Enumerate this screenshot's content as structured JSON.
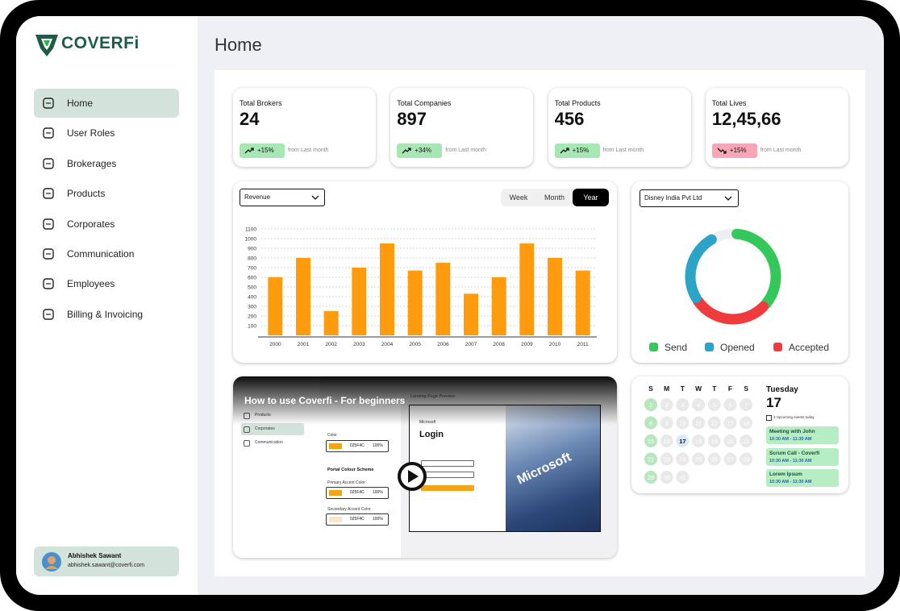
{
  "sidebar": {
    "logo": "COVERFi",
    "nav": [
      "Home",
      "User Roles",
      "Brokerages",
      "Products",
      "Corporates",
      "Communication",
      "Employees",
      "Billing & Invoicing"
    ],
    "user": {
      "name": "Abhishek Sawant",
      "email": "abhishek.sawant@coverfi.com"
    }
  },
  "page_title": "Home",
  "stats": [
    {
      "label": "Total Brokers",
      "value": "24",
      "change": "+15%",
      "note": "from Last month",
      "color": "#a6e7b4"
    },
    {
      "label": "Total Companies",
      "value": "897",
      "change": "+34%",
      "note": "from Last month",
      "color": "#a6e7b4"
    },
    {
      "label": "Total Products",
      "value": "456",
      "change": "+15%",
      "note": "from Last month",
      "color": "#a6e7b4"
    },
    {
      "label": "Total Lives",
      "value": "12,45,66",
      "change": "+15%",
      "note": "from Last month",
      "color": "#f6a6b6"
    }
  ],
  "revenue_card": {
    "dropdown": "Revenue",
    "tabs": [
      "Week",
      "Month",
      "Year"
    ]
  },
  "donut_card": {
    "dropdown": "Disney India Pvt Ltd"
  },
  "chart_data": [
    {
      "type": "bar",
      "categories": [
        "2000",
        "2001",
        "2002",
        "2003",
        "2004",
        "2005",
        "2006",
        "2007",
        "2008",
        "2009",
        "2010",
        "2011"
      ],
      "values": [
        600,
        800,
        250,
        700,
        950,
        670,
        750,
        430,
        600,
        950,
        800,
        670
      ],
      "color": "#ff9b0d",
      "ylim": [
        0,
        1100
      ],
      "yticks": [
        100,
        200,
        300,
        400,
        500,
        600,
        700,
        800,
        900,
        1000,
        1100
      ],
      "grid": true
    },
    {
      "type": "donut",
      "categories": [
        "Send",
        "Opened",
        "Accepted"
      ],
      "values": [
        35,
        25,
        28
      ],
      "colors": [
        "#34c759",
        "#2ba4c8",
        "#ef3b3b"
      ]
    }
  ],
  "video": {
    "title": "How to use Coverfi - For beginners",
    "menu": [
      "Products",
      "Corporates",
      "Communication"
    ],
    "preview_title": "Landing Page Preview",
    "color_label": "Color",
    "hex": "025F4C",
    "percent": "100%",
    "scheme": "Portal Colour Scheme",
    "primary": "Primary Accent Color",
    "secondary": "Secondary Accent Color",
    "login": "Login",
    "brand": "Microsoft"
  },
  "calendar": {
    "weekdays": [
      "S",
      "M",
      "T",
      "W",
      "T",
      "F",
      "S"
    ],
    "days": [
      1,
      2,
      3,
      4,
      5,
      6,
      7,
      8,
      9,
      10,
      11,
      12,
      13,
      14,
      15,
      16,
      17,
      18,
      19,
      20,
      21,
      22,
      23,
      24,
      25,
      26,
      27,
      28,
      29,
      30,
      31
    ],
    "day_name": "Tuesday",
    "day": "17",
    "note": "3 Upcoming events today",
    "events": [
      {
        "title": "Meeting with John",
        "time": "10:30 AM - 11:30 AM"
      },
      {
        "title": "Scrum Call - Coverfi",
        "time": "10:30 AM - 11:30 AM"
      },
      {
        "title": "Lorem Ipsum",
        "time": "10:30 AM - 11:30 AM"
      }
    ]
  }
}
